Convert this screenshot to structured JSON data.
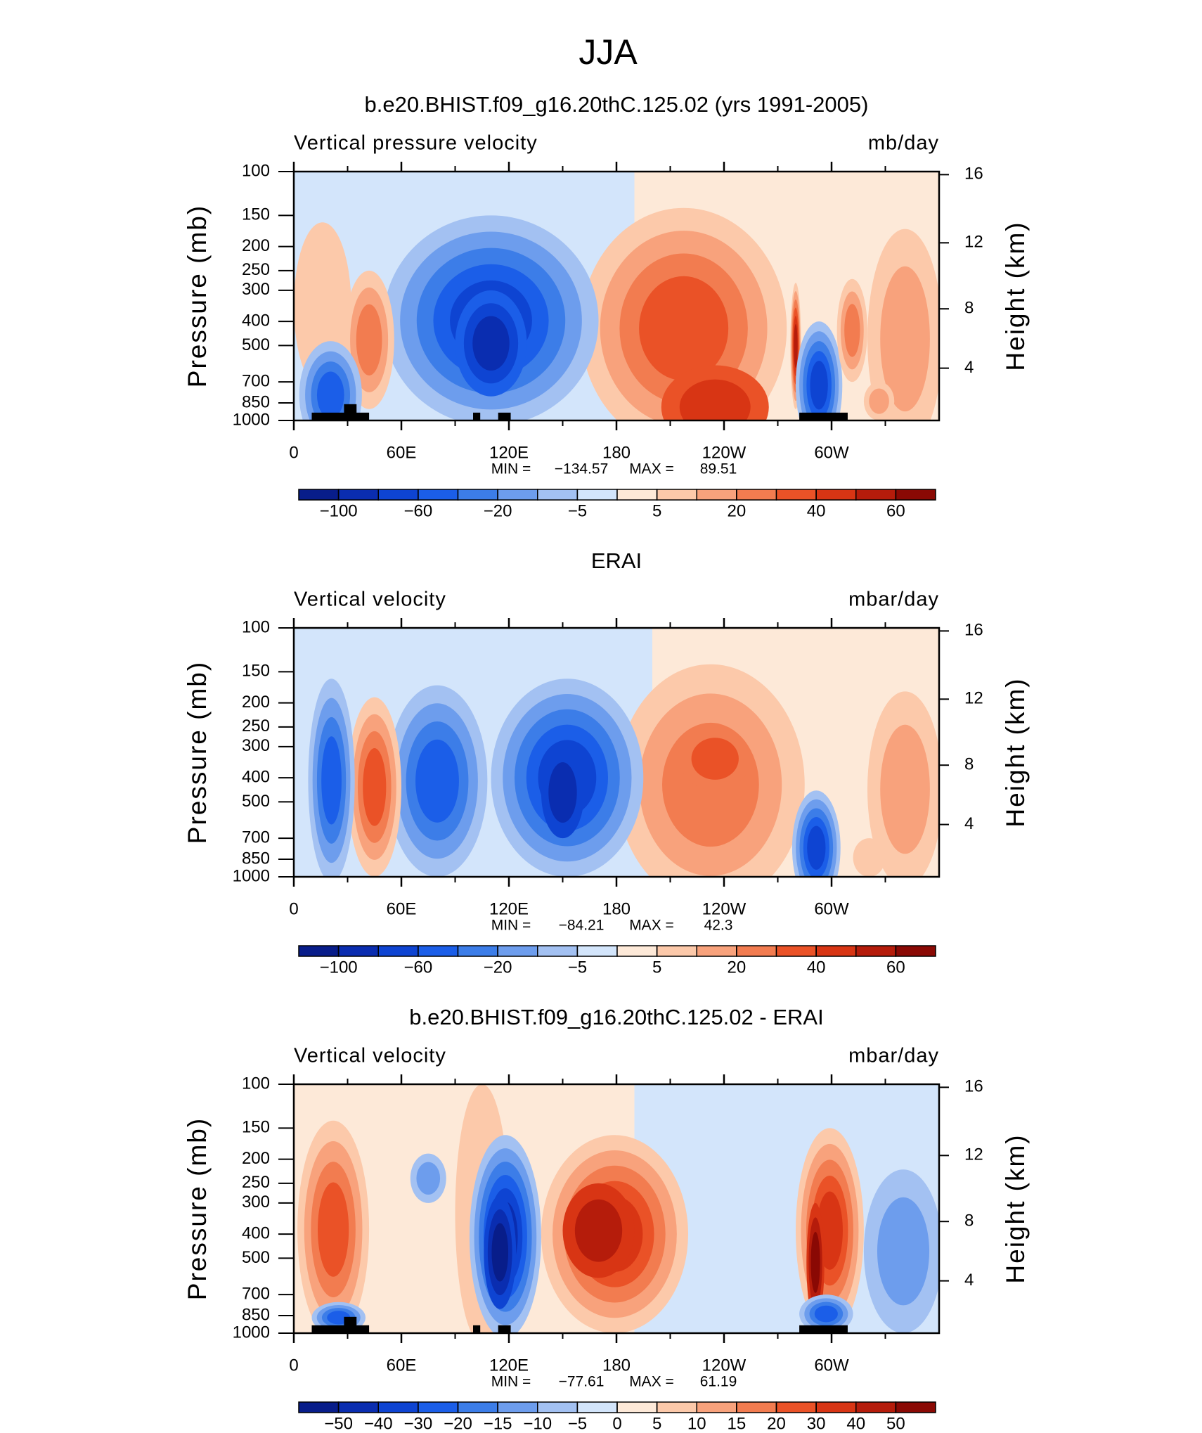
{
  "title": "JJA",
  "chart_data": [
    {
      "type": "contour",
      "title": "b.e20.BHIST.f09_g16.20thC.125.02 (yrs 1991-2005)",
      "field_label": "Vertical pressure velocity",
      "units": "mb/day",
      "ylabel": "Pressure (mb)",
      "y2label": "Height (km)",
      "xlim": [
        0,
        360
      ],
      "xticks": [
        0,
        {
          "value": 60,
          "label": "60E"
        },
        {
          "value": 120,
          "label": "120E"
        },
        180,
        {
          "value": 240,
          "label": "120W"
        },
        {
          "value": 300,
          "label": "60W"
        }
      ],
      "xminorticks": [
        30,
        90,
        150,
        210,
        270,
        330
      ],
      "ylim": [
        1000,
        100
      ],
      "ylog": true,
      "yticks": [
        100,
        150,
        200,
        250,
        300,
        400,
        500,
        700,
        850,
        1000
      ],
      "y2ticks": [
        4,
        8,
        12,
        16
      ],
      "min_label": "MIN =",
      "min": {
        "value": -134.57,
        "label": "−134.57"
      },
      "max_label": "MAX =",
      "max": 89.51,
      "colorbar": {
        "colors": [
          "#081d8a",
          "#0a2db0",
          "#0e44d2",
          "#1b5ee8",
          "#3c7de8",
          "#6d9ded",
          "#a3c1f2",
          "#d3e5fb",
          "#fde9d8",
          "#fcc9aa",
          "#f8a27c",
          "#f27c50",
          "#ea5227",
          "#d83514",
          "#b51c0b",
          "#8a0904"
        ],
        "ticks": [
          {
            "value": -100,
            "label": "−100"
          },
          {
            "value": -60,
            "label": "−60"
          },
          {
            "value": -20,
            "label": "−20"
          },
          {
            "value": -5,
            "label": "−5"
          },
          5,
          20,
          40,
          60
        ]
      }
    },
    {
      "type": "contour",
      "title": "ERAI",
      "field_label": "Vertical velocity",
      "units": "mbar/day",
      "ylabel": "Pressure (mb)",
      "y2label": "Height (km)",
      "xlim": [
        0,
        360
      ],
      "xticks": [
        0,
        {
          "value": 60,
          "label": "60E"
        },
        {
          "value": 120,
          "label": "120E"
        },
        180,
        {
          "value": 240,
          "label": "120W"
        },
        {
          "value": 300,
          "label": "60W"
        }
      ],
      "xminorticks": [
        30,
        90,
        150,
        210,
        270,
        330
      ],
      "ylim": [
        1000,
        100
      ],
      "ylog": true,
      "yticks": [
        100,
        150,
        200,
        250,
        300,
        400,
        500,
        700,
        850,
        1000
      ],
      "y2ticks": [
        4,
        8,
        12,
        16
      ],
      "min_label": "MIN =",
      "min": {
        "value": -84.21,
        "label": "−84.21"
      },
      "max_label": "MAX =",
      "max": 42.3,
      "colorbar": {
        "colors": [
          "#081d8a",
          "#0a2db0",
          "#0e44d2",
          "#1b5ee8",
          "#3c7de8",
          "#6d9ded",
          "#a3c1f2",
          "#d3e5fb",
          "#fde9d8",
          "#fcc9aa",
          "#f8a27c",
          "#f27c50",
          "#ea5227",
          "#d83514",
          "#b51c0b",
          "#8a0904"
        ],
        "ticks": [
          {
            "value": -100,
            "label": "−100"
          },
          {
            "value": -60,
            "label": "−60"
          },
          {
            "value": -20,
            "label": "−20"
          },
          {
            "value": -5,
            "label": "−5"
          },
          5,
          20,
          40,
          60
        ]
      }
    },
    {
      "type": "contour",
      "title": "b.e20.BHIST.f09_g16.20thC.125.02 - ERAI",
      "field_label": "Vertical velocity",
      "units": "mbar/day",
      "ylabel": "Pressure (mb)",
      "y2label": "Height (km)",
      "xlim": [
        0,
        360
      ],
      "xticks": [
        0,
        {
          "value": 60,
          "label": "60E"
        },
        {
          "value": 120,
          "label": "120E"
        },
        180,
        {
          "value": 240,
          "label": "120W"
        },
        {
          "value": 300,
          "label": "60W"
        }
      ],
      "xminorticks": [
        30,
        90,
        150,
        210,
        270,
        330
      ],
      "ylim": [
        1000,
        100
      ],
      "ylog": true,
      "yticks": [
        100,
        150,
        200,
        250,
        300,
        400,
        500,
        700,
        850,
        1000
      ],
      "y2ticks": [
        4,
        8,
        12,
        16
      ],
      "min_label": "MIN =",
      "min": {
        "value": -77.61,
        "label": "−77.61"
      },
      "max_label": "MAX =",
      "max": 61.19,
      "colorbar": {
        "colors": [
          "#081d8a",
          "#0a2db0",
          "#0e44d2",
          "#1b5ee8",
          "#3c7de8",
          "#6d9ded",
          "#a3c1f2",
          "#d3e5fb",
          "#fde9d8",
          "#fcc9aa",
          "#f8a27c",
          "#f27c50",
          "#ea5227",
          "#d83514",
          "#b51c0b",
          "#8a0904"
        ],
        "ticks": [
          {
            "value": -50,
            "label": "−50"
          },
          {
            "value": -40,
            "label": "−40"
          },
          {
            "value": -30,
            "label": "−30"
          },
          {
            "value": -20,
            "label": "−20"
          },
          {
            "value": -15,
            "label": "−15"
          },
          {
            "value": -10,
            "label": "−10"
          },
          {
            "value": -5,
            "label": "−5"
          },
          0,
          5,
          10,
          15,
          20,
          30,
          40,
          50
        ]
      }
    }
  ]
}
